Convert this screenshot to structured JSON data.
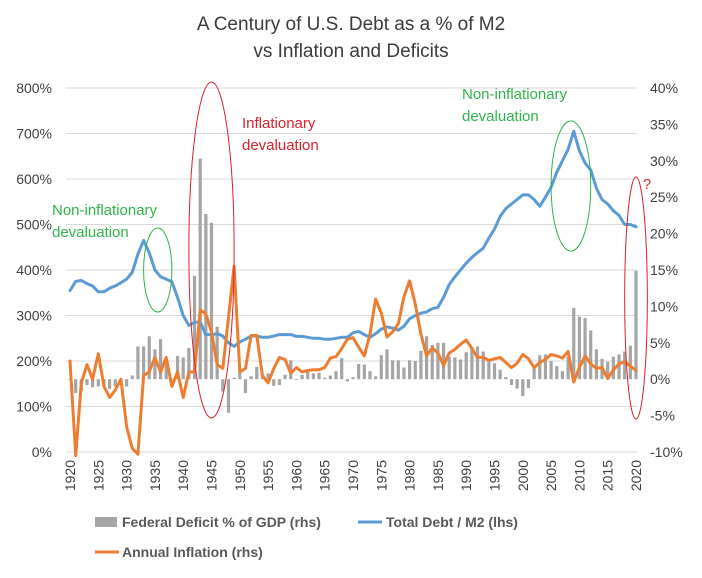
{
  "chart_data": {
    "type": "combo",
    "title_line1": "A Century of U.S. Debt as a % of M2",
    "title_line2": "vs Inflation and Deficits",
    "x_labels": [
      "1920",
      "1925",
      "1930",
      "1935",
      "1940",
      "1945",
      "1950",
      "1955",
      "1960",
      "1965",
      "1970",
      "1975",
      "1980",
      "1985",
      "1990",
      "1995",
      "2000",
      "2005",
      "2010",
      "2015",
      "2020"
    ],
    "y_left": {
      "range": [
        0,
        800
      ],
      "ticks": [
        "0%",
        "100%",
        "200%",
        "300%",
        "400%",
        "500%",
        "600%",
        "700%",
        "800%"
      ]
    },
    "y_right": {
      "range": [
        -10,
        40
      ],
      "ticks": [
        "-10%",
        "-5%",
        "0%",
        "5%",
        "10%",
        "15%",
        "20%",
        "25%",
        "30%",
        "35%",
        "40%"
      ]
    },
    "years": [
      1920,
      1921,
      1922,
      1923,
      1924,
      1925,
      1926,
      1927,
      1928,
      1929,
      1930,
      1931,
      1932,
      1933,
      1934,
      1935,
      1936,
      1937,
      1938,
      1939,
      1940,
      1941,
      1942,
      1943,
      1944,
      1945,
      1946,
      1947,
      1948,
      1949,
      1950,
      1951,
      1952,
      1953,
      1954,
      1955,
      1956,
      1957,
      1958,
      1959,
      1960,
      1961,
      1962,
      1963,
      1964,
      1965,
      1966,
      1967,
      1968,
      1969,
      1970,
      1971,
      1972,
      1973,
      1974,
      1975,
      1976,
      1977,
      1978,
      1979,
      1980,
      1981,
      1982,
      1983,
      1984,
      1985,
      1986,
      1987,
      1988,
      1989,
      1990,
      1991,
      1992,
      1993,
      1994,
      1995,
      1996,
      1997,
      1998,
      1999,
      2000,
      2001,
      2002,
      2003,
      2004,
      2005,
      2006,
      2007,
      2008,
      2009,
      2010,
      2011,
      2012,
      2013,
      2014,
      2015,
      2016,
      2017,
      2018,
      2019,
      2020
    ],
    "series": [
      {
        "name": "Federal Deficit % of GDP (rhs)",
        "type": "bar",
        "axis": "right",
        "color": "#a5a5a5",
        "values": [
          -0.1,
          -1.9,
          -1.6,
          -0.8,
          -1.1,
          -1.0,
          -1.0,
          -1.3,
          -1.0,
          -0.8,
          -1.0,
          0.5,
          4.5,
          4.5,
          5.9,
          4.1,
          5.5,
          2.5,
          0.1,
          3.2,
          3.0,
          4.3,
          14.2,
          30.3,
          22.7,
          21.5,
          7.2,
          -1.7,
          -4.6,
          0.2,
          1.1,
          -1.9,
          0.4,
          1.7,
          0.3,
          0.8,
          -0.9,
          -0.8,
          0.6,
          2.6,
          -0.1,
          0.6,
          1.3,
          0.8,
          0.9,
          0.2,
          0.5,
          1.1,
          2.9,
          -0.3,
          0.3,
          2.1,
          2.0,
          1.1,
          0.4,
          3.3,
          4.1,
          2.6,
          2.6,
          1.6,
          2.6,
          2.5,
          3.9,
          5.9,
          4.7,
          5.0,
          5.0,
          3.1,
          3.0,
          2.7,
          3.7,
          4.4,
          4.5,
          3.8,
          2.8,
          2.2,
          1.3,
          0.3,
          -0.8,
          -1.3,
          -2.3,
          -1.2,
          1.5,
          3.3,
          3.4,
          2.5,
          1.8,
          1.1,
          3.1,
          9.8,
          8.6,
          8.4,
          6.7,
          4.1,
          2.8,
          2.4,
          3.1,
          3.4,
          3.8,
          4.6,
          14.9
        ]
      },
      {
        "name": "Total Debt / M2 (lhs)",
        "type": "line",
        "axis": "left",
        "color": "#5b9bd5",
        "values": [
          355,
          375,
          377,
          370,
          365,
          352,
          352,
          360,
          365,
          372,
          380,
          395,
          435,
          465,
          438,
          400,
          385,
          380,
          374,
          340,
          300,
          278,
          285,
          285,
          258,
          258,
          260,
          255,
          240,
          232,
          242,
          248,
          255,
          255,
          252,
          252,
          255,
          258,
          258,
          258,
          254,
          254,
          252,
          250,
          250,
          248,
          248,
          250,
          252,
          252,
          262,
          265,
          258,
          252,
          260,
          270,
          275,
          272,
          268,
          276,
          293,
          300,
          305,
          308,
          315,
          318,
          340,
          368,
          385,
          400,
          415,
          428,
          438,
          448,
          470,
          490,
          518,
          535,
          545,
          555,
          565,
          565,
          555,
          540,
          560,
          582,
          615,
          640,
          665,
          705,
          662,
          635,
          620,
          580,
          555,
          545,
          530,
          520,
          500,
          500,
          495
        ]
      },
      {
        "name": "Annual Inflation (rhs)",
        "type": "line",
        "axis": "right",
        "color": "#ed7d31",
        "values": [
          2.5,
          -10.5,
          -0.5,
          2.0,
          0.0,
          3.5,
          -1.0,
          -2.5,
          -1.5,
          0.0,
          -6.5,
          -9.5,
          -10.3,
          0.5,
          1.0,
          3.0,
          1.0,
          3.0,
          -1.0,
          1.0,
          -2.5,
          1.0,
          1.0,
          9.5,
          9.0,
          6.5,
          2.0,
          1.5,
          8.5,
          15.5,
          1.0,
          1.5,
          6.0,
          6.0,
          0.5,
          -0.5,
          1.5,
          3.0,
          2.7,
          0.8,
          1.6,
          1.0,
          1.2,
          1.3,
          1.3,
          1.6,
          2.9,
          3.1,
          4.2,
          5.5,
          5.7,
          4.4,
          3.2,
          6.2,
          11.0,
          9.1,
          5.8,
          6.5,
          7.6,
          11.3,
          13.5,
          10.3,
          6.2,
          3.2,
          4.3,
          3.6,
          1.9,
          3.6,
          4.1,
          4.8,
          5.4,
          4.2,
          3.0,
          3.0,
          2.6,
          2.8,
          3.0,
          2.3,
          1.6,
          2.2,
          3.4,
          2.8,
          1.6,
          2.3,
          2.7,
          3.4,
          3.2,
          2.9,
          3.8,
          -0.4,
          1.6,
          3.2,
          2.1,
          1.5,
          1.6,
          0.1,
          1.3,
          2.1,
          2.4,
          1.8,
          1.2
        ]
      }
    ],
    "annotations": [
      {
        "label": "Non-inflationary devaluation",
        "line1": "Non-inflationary",
        "line2": "devaluation",
        "color": "#2fb44b",
        "from": 1933,
        "to": 1938
      },
      {
        "label": "Inflationary devaluation",
        "line1": "Inflationary",
        "line2": "devaluation",
        "color": "#e0202a",
        "from": 1941,
        "to": 1949
      },
      {
        "label": "Non-inflationary devaluation",
        "line1": "Non-inflationary",
        "line2": "devaluation",
        "color": "#2fb44b",
        "from": 2005,
        "to": 2012
      },
      {
        "label": "?",
        "line1": "?",
        "line2": "",
        "color": "#e0202a",
        "from": 2018,
        "to": 2022
      }
    ],
    "legend": [
      "Federal Deficit % of GDP (rhs)",
      "Total Debt / M2 (lhs)",
      "Annual Inflation (rhs)"
    ]
  }
}
